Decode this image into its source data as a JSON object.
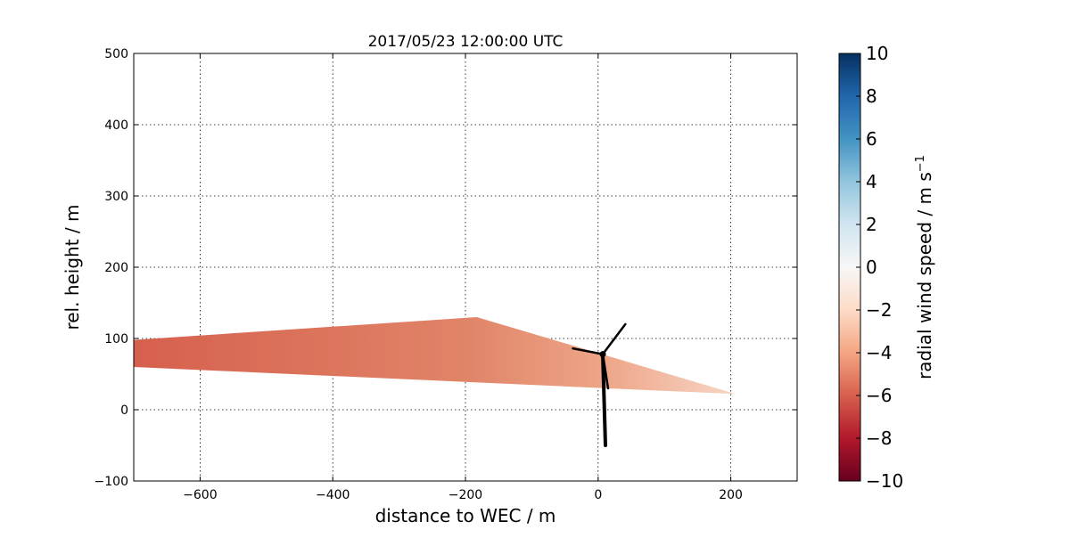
{
  "chart_data": {
    "type": "heatmap",
    "title": "2017/05/23 12:00:00 UTC",
    "xlabel": "distance to WEC / m",
    "ylabel": "rel. height / m",
    "xlim": [
      -700,
      300
    ],
    "ylim": [
      -100,
      500
    ],
    "xticks": [
      -600,
      -400,
      -200,
      0,
      200
    ],
    "yticks": [
      -100,
      0,
      100,
      200,
      300,
      400,
      500
    ],
    "xtick_labels": [
      "−600",
      "−400",
      "−200",
      "0",
      "200"
    ],
    "ytick_labels": [
      "−100",
      "0",
      "100",
      "200",
      "300",
      "400",
      "500"
    ],
    "grid": true,
    "colorbar": {
      "label": "radial wind speed / m s",
      "label_exponent": "−1",
      "vmin": -10,
      "vmax": 10,
      "colormap": "RdBu",
      "ticks": [
        10,
        8,
        6,
        4,
        2,
        0,
        -2,
        -4,
        -6,
        -8,
        -10
      ],
      "tick_labels": [
        "10",
        "8",
        "6",
        "4",
        "2",
        "0",
        "−2",
        "−4",
        "−6",
        "−8",
        "−10"
      ]
    },
    "scan_region": {
      "description": "wedge-shaped radial wind speed field",
      "apex": [
        -183,
        130
      ],
      "left_top": [
        -700,
        98
      ],
      "left_bottom": [
        -700,
        60
      ],
      "right_tip": [
        208,
        22
      ],
      "value_range": [
        -6.5,
        -1.5
      ]
    },
    "turbine": {
      "hub": [
        7,
        78
      ],
      "tower_base": [
        11,
        -50
      ],
      "blade_tips": [
        [
          41,
          120
        ],
        [
          -38,
          86
        ],
        [
          15,
          30
        ]
      ]
    }
  }
}
